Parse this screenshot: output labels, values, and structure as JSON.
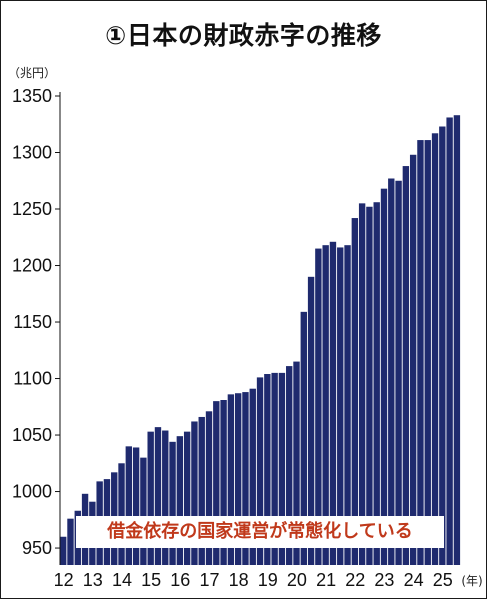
{
  "chart_data": {
    "type": "bar",
    "title": "①日本の財政赤字の推移",
    "y_unit": "（兆円）",
    "x_unit": "(年)",
    "bar_color": "#1f2a6e",
    "annotation_color": "#c0391b",
    "ylim": [
      935,
      1350
    ],
    "y_ticks": [
      950,
      1000,
      1050,
      1100,
      1150,
      1200,
      1250,
      1300,
      1350
    ],
    "x_tick_labels": [
      "12",
      "13",
      "14",
      "15",
      "16",
      "17",
      "18",
      "19",
      "20",
      "21",
      "22",
      "23",
      "24",
      "25"
    ],
    "x_tick_start_index": 0,
    "x_tick_every": 4,
    "annotation": "借金依存の国家運営が常態化している",
    "grid": false,
    "legend": "none",
    "values": [
      960,
      976,
      983,
      998,
      991,
      1009,
      1011,
      1017,
      1025,
      1040,
      1039,
      1030,
      1053,
      1057,
      1054,
      1044,
      1049,
      1053,
      1062,
      1066,
      1071,
      1080,
      1081,
      1086,
      1087,
      1088,
      1091,
      1101,
      1104,
      1105,
      1105,
      1111,
      1115,
      1159,
      1190,
      1215,
      1218,
      1221,
      1216,
      1218,
      1242,
      1255,
      1252,
      1256,
      1268,
      1277,
      1275,
      1288,
      1298,
      1311,
      1311,
      1317,
      1323,
      1331,
      1333
    ]
  }
}
